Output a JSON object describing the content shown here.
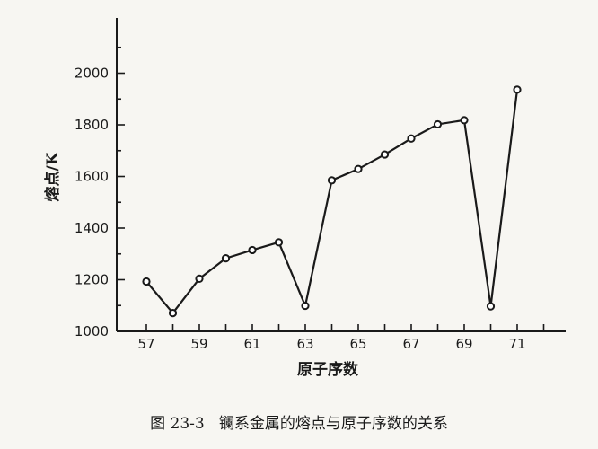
{
  "chart_data": {
    "type": "line",
    "xlabel": "原子序数",
    "ylabel": "熔点/K",
    "caption": "图 23-3   镧系金属的熔点与原子序数的关系",
    "x_ticks": [
      57,
      59,
      61,
      63,
      65,
      67,
      69,
      71
    ],
    "y_ticks": [
      1000,
      1200,
      1400,
      1600,
      1800,
      2000
    ],
    "xlim": [
      56,
      73
    ],
    "ylim": [
      1000,
      2200
    ],
    "grid": false,
    "series": [
      {
        "x": [
          57,
          58,
          59,
          60,
          61,
          62,
          63,
          64,
          65,
          66,
          67,
          68,
          69,
          70,
          71
        ],
        "y": [
          1193,
          1071,
          1204,
          1283,
          1315,
          1345,
          1099,
          1585,
          1629,
          1685,
          1747,
          1802,
          1818,
          1097,
          1936
        ]
      }
    ]
  }
}
